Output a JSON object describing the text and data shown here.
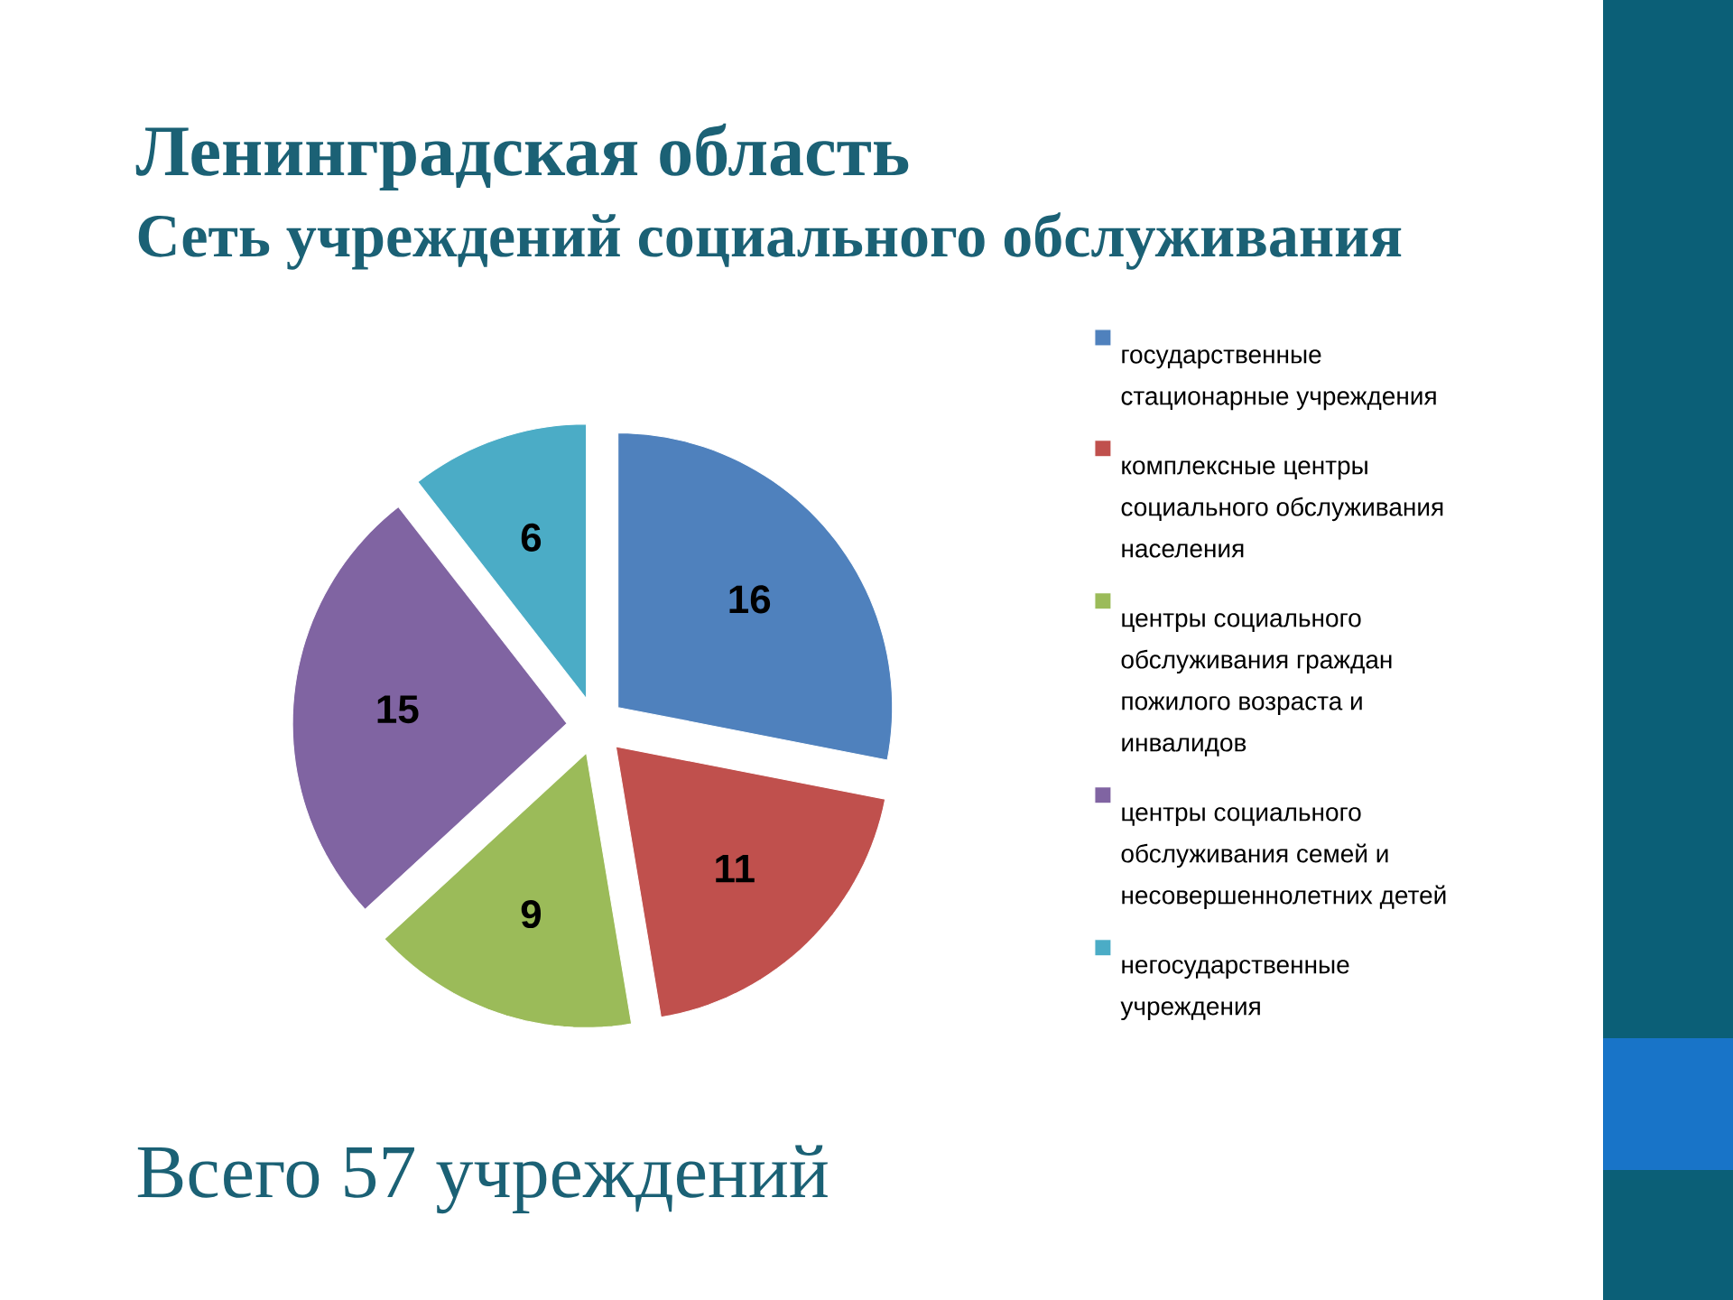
{
  "chart_data": {
    "type": "pie",
    "title": "Ленинградская область",
    "subtitle": "Сеть учреждений социального обслуживания",
    "categories": [
      "государственные стационарные учреждения",
      "комплексные центры социального обслуживания населения",
      "центры социального обслуживания граждан пожилого возраста и инвалидов",
      "центры социального обслуживания семей и несовершеннолетних детей",
      "негосударственные учреждения"
    ],
    "values": [
      16,
      11,
      9,
      15,
      6
    ],
    "colors": [
      "#4f81bd",
      "#c0504d",
      "#9bbb59",
      "#8064a2",
      "#4bacc6"
    ],
    "data_labels": true,
    "legend": "right",
    "annotations": [
      "Всего 57 учреждений"
    ]
  }
}
